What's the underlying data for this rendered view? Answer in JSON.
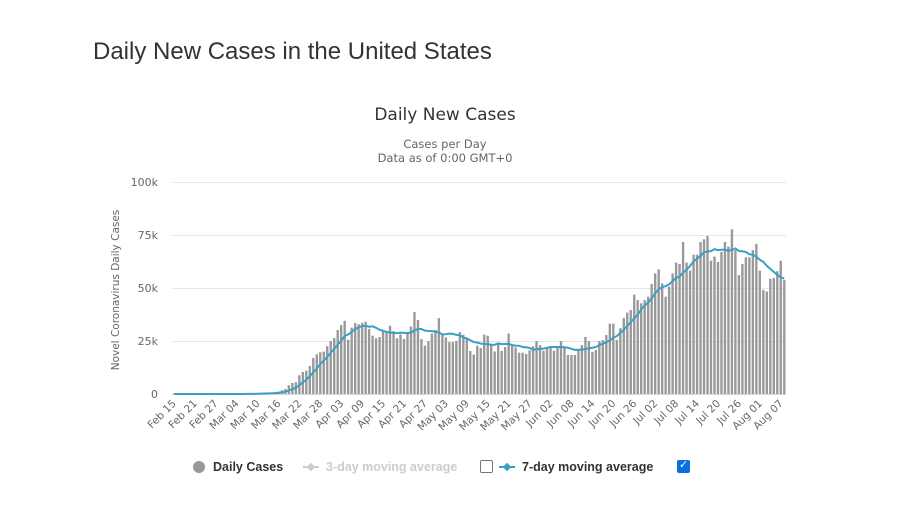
{
  "page": {
    "title": "Daily New Cases in the United States"
  },
  "chart_data": {
    "type": "bar",
    "title": "Daily New Cases",
    "subtitle": [
      "Cases per Day",
      "Data as of 0:00 GMT+0"
    ],
    "xlabel": "",
    "ylabel": "Novel Coronavirus Daily Cases",
    "ylim": [
      0,
      100000
    ],
    "y_ticks": [
      0,
      25000,
      50000,
      75000,
      100000
    ],
    "y_tick_labels": [
      "0",
      "25k",
      "50k",
      "75k",
      "100k"
    ],
    "grid": true,
    "legend_position": "bottom",
    "categories": [
      "Feb 15",
      "Feb 16",
      "Feb 17",
      "Feb 18",
      "Feb 19",
      "Feb 20",
      "Feb 21",
      "Feb 22",
      "Feb 23",
      "Feb 24",
      "Feb 25",
      "Feb 26",
      "Feb 27",
      "Feb 28",
      "Feb 29",
      "Mar 01",
      "Mar 02",
      "Mar 03",
      "Mar 04",
      "Mar 05",
      "Mar 06",
      "Mar 07",
      "Mar 08",
      "Mar 09",
      "Mar 10",
      "Mar 11",
      "Mar 12",
      "Mar 13",
      "Mar 14",
      "Mar 15",
      "Mar 16",
      "Mar 17",
      "Mar 18",
      "Mar 19",
      "Mar 20",
      "Mar 21",
      "Mar 22",
      "Mar 23",
      "Mar 24",
      "Mar 25",
      "Mar 26",
      "Mar 27",
      "Mar 28",
      "Mar 29",
      "Mar 30",
      "Mar 31",
      "Apr 01",
      "Apr 02",
      "Apr 03",
      "Apr 04",
      "Apr 05",
      "Apr 06",
      "Apr 07",
      "Apr 08",
      "Apr 09",
      "Apr 10",
      "Apr 11",
      "Apr 12",
      "Apr 13",
      "Apr 14",
      "Apr 15",
      "Apr 16",
      "Apr 17",
      "Apr 18",
      "Apr 19",
      "Apr 20",
      "Apr 21",
      "Apr 22",
      "Apr 23",
      "Apr 24",
      "Apr 25",
      "Apr 26",
      "Apr 27",
      "Apr 28",
      "Apr 29",
      "Apr 30",
      "May 01",
      "May 02",
      "May 03",
      "May 04",
      "May 05",
      "May 06",
      "May 07",
      "May 08",
      "May 09",
      "May 10",
      "May 11",
      "May 12",
      "May 13",
      "May 14",
      "May 15",
      "May 16",
      "May 17",
      "May 18",
      "May 19",
      "May 20",
      "May 21",
      "May 22",
      "May 23",
      "May 24",
      "May 25",
      "May 26",
      "May 27",
      "May 28",
      "May 29",
      "May 30",
      "May 31",
      "Jun 01",
      "Jun 02",
      "Jun 03",
      "Jun 04",
      "Jun 05",
      "Jun 06",
      "Jun 07",
      "Jun 08",
      "Jun 09",
      "Jun 10",
      "Jun 11",
      "Jun 12",
      "Jun 13",
      "Jun 14",
      "Jun 15",
      "Jun 16",
      "Jun 17",
      "Jun 18",
      "Jun 19",
      "Jun 20",
      "Jun 21",
      "Jun 22",
      "Jun 23",
      "Jun 24",
      "Jun 25",
      "Jun 26",
      "Jun 27",
      "Jun 28",
      "Jun 29",
      "Jun 30",
      "Jul 01",
      "Jul 02",
      "Jul 03",
      "Jul 04",
      "Jul 05",
      "Jul 06",
      "Jul 07",
      "Jul 08",
      "Jul 09",
      "Jul 10",
      "Jul 11",
      "Jul 12",
      "Jul 13",
      "Jul 14",
      "Jul 15",
      "Jul 16",
      "Jul 17",
      "Jul 18",
      "Jul 19",
      "Jul 20",
      "Jul 21",
      "Jul 22",
      "Jul 23",
      "Jul 24",
      "Jul 25",
      "Jul 26",
      "Jul 27",
      "Jul 28",
      "Jul 29",
      "Jul 30",
      "Jul 31",
      "Aug 01",
      "Aug 02",
      "Aug 03",
      "Aug 04",
      "Aug 05",
      "Aug 06",
      "Aug 07",
      "Aug 08"
    ],
    "x_tick_labels": [
      "Feb 15",
      "Feb 21",
      "Feb 27",
      "Mar 04",
      "Mar 10",
      "Mar 16",
      "Mar 22",
      "Mar 28",
      "Apr 03",
      "Apr 09",
      "Apr 15",
      "Apr 21",
      "Apr 27",
      "May 03",
      "May 09",
      "May 15",
      "May 21",
      "May 27",
      "Jun 02",
      "Jun 08",
      "Jun 14",
      "Jun 20",
      "Jun 26",
      "Jul 02",
      "Jul 08",
      "Jul 14",
      "Jul 20",
      "Jul 26",
      "Aug 01",
      "Aug 07"
    ],
    "series": [
      {
        "name": "Daily Cases",
        "type": "bar",
        "color": "#999999",
        "visible": true,
        "values": [
          0,
          0,
          0,
          0,
          0,
          0,
          2,
          0,
          0,
          18,
          0,
          6,
          1,
          2,
          8,
          6,
          23,
          20,
          31,
          68,
          45,
          140,
          116,
          65,
          376,
          322,
          382,
          516,
          548,
          772,
          1133,
          1789,
          2400,
          4100,
          5200,
          5600,
          8800,
          10400,
          11000,
          13200,
          17000,
          18700,
          19700,
          20000,
          22600,
          25000,
          26400,
          30200,
          32500,
          34500,
          25600,
          31300,
          33500,
          32900,
          33600,
          34100,
          30700,
          27500,
          26300,
          26900,
          29700,
          29700,
          32200,
          29700,
          26300,
          28100,
          26000,
          29100,
          31800,
          38700,
          34900,
          25900,
          22800,
          25000,
          28500,
          30200,
          35800,
          28500,
          26700,
          24500,
          24500,
          25000,
          29200,
          28000,
          25900,
          20300,
          18600,
          22800,
          21700,
          28000,
          27500,
          23700,
          20000,
          23400,
          20300,
          22200,
          28500,
          23400,
          21900,
          19500,
          19500,
          18900,
          20600,
          22500,
          25000,
          23100,
          20400,
          22000,
          21900,
          20400,
          22600,
          25000,
          22300,
          18400,
          18400,
          18400,
          21000,
          23100,
          26900,
          25000,
          19800,
          20800,
          25000,
          25500,
          27800,
          33200,
          33200,
          25500,
          31100,
          35800,
          38400,
          39600,
          46900,
          44300,
          42800,
          44300,
          45900,
          51900,
          56900,
          58800,
          52200,
          45900,
          50600,
          56900,
          62000,
          61300,
          71700,
          62000,
          58200,
          65700,
          65700,
          71700,
          73000,
          74500,
          62900,
          64800,
          62300,
          67000,
          71700,
          69500,
          77700,
          67900,
          56100,
          61300,
          64500,
          64500,
          67900,
          70800,
          58200,
          49100,
          48300,
          54400,
          54700,
          57900,
          62900,
          53800
        ]
      },
      {
        "name": "3-day moving average",
        "type": "line",
        "color": "#cccccc",
        "visible": false
      },
      {
        "name": "7-day moving average",
        "type": "line",
        "color": "#38a0c8",
        "visible": true,
        "values": [
          0,
          0,
          0,
          0,
          0,
          0,
          0,
          0,
          0,
          3,
          3,
          4,
          4,
          4,
          5,
          6,
          7,
          9,
          13,
          23,
          29,
          48,
          63,
          69,
          120,
          162,
          207,
          274,
          332,
          426,
          578,
          780,
          1077,
          1608,
          2277,
          2999,
          4146,
          5470,
          6786,
          8329,
          10171,
          12100,
          14114,
          15714,
          17457,
          19457,
          21343,
          23229,
          25200,
          27314,
          28114,
          29357,
          30571,
          31500,
          31986,
          32214,
          31671,
          31943,
          31229,
          30286,
          29829,
          29271,
          29000,
          28857,
          28686,
          28943,
          28814,
          28729,
          29029,
          29957,
          30700,
          30643,
          29886,
          29743,
          29657,
          29429,
          29014,
          28100,
          28214,
          28457,
          28386,
          27886,
          27743,
          26629,
          26257,
          25343,
          24500,
          24257,
          23786,
          23614,
          23543,
          23229,
          23186,
          23871,
          23514,
          23586,
          23657,
          23071,
          22814,
          22743,
          22186,
          21986,
          21757,
          20900,
          21129,
          21300,
          21429,
          21786,
          22214,
          22186,
          22200,
          22200,
          22086,
          21800,
          21286,
          20786,
          20871,
          20943,
          21214,
          21600,
          21800,
          22143,
          23086,
          23729,
          24400,
          25300,
          26471,
          27286,
          28757,
          30300,
          32143,
          33829,
          35786,
          37371,
          39843,
          41729,
          43171,
          45100,
          47571,
          49271,
          50400,
          50843,
          51743,
          53314,
          54757,
          55386,
          57229,
          58629,
          60386,
          62543,
          63800,
          65186,
          66857,
          67257,
          67386,
          68329,
          67843,
          68029,
          68029,
          67529,
          67986,
          68700,
          67457,
          67314,
          66957,
          65929,
          65700,
          64714,
          63329,
          62329,
          60471,
          59029,
          57629,
          56200,
          55071,
          54443
        ]
      }
    ],
    "legend": {
      "items": [
        {
          "label": "Daily Cases",
          "marker": "circle",
          "enabled": true
        },
        {
          "label": "3-day moving average",
          "marker": "line-diamond",
          "enabled": false,
          "checkbox_checked": false
        },
        {
          "label": "7-day moving average",
          "marker": "line-diamond",
          "enabled": true,
          "checkbox_checked": true
        }
      ],
      "checkbox_color": "#0b6fe0",
      "hidden_color": "#cccccc"
    },
    "colors": {
      "gridline": "#e6e6e6",
      "axis_line": "#ccd6eb",
      "label": "#666666",
      "title": "#333333"
    }
  }
}
